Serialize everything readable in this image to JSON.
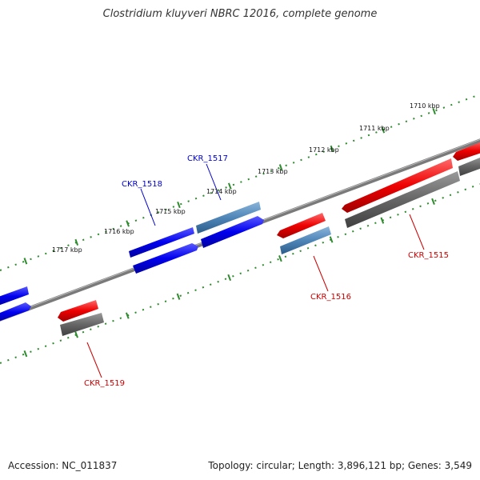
{
  "title": "Clostridium kluyveri NBRC 12016, complete genome",
  "footer": {
    "accession": "Accession: NC_011837",
    "summary": "Topology: circular; Length: 3,896,121 bp; Genes: 3,549"
  },
  "colors": {
    "backbone": "#7a7a7a",
    "tick": "#2e8b2e",
    "forward_gene": "#0000ee",
    "forward_gene_light": "#4f86b8",
    "reverse_gene": "#ee0000",
    "reverse_gene_dark": "#666666",
    "forward_label": "#0000cc",
    "reverse_label": "#cc0000",
    "tick_label": "#111111"
  },
  "ruler": {
    "unit": "kbp",
    "labels": [
      "1710 kbp",
      "1711 kbp",
      "1712 kbp",
      "1713 kbp",
      "1714 kbp",
      "1715 kbp",
      "1716 kbp",
      "1717 kbp"
    ]
  },
  "genes": [
    {
      "name": "CKR_1515",
      "strand": "reverse"
    },
    {
      "name": "CKR_1516",
      "strand": "reverse"
    },
    {
      "name": "CKR_1517",
      "strand": "forward"
    },
    {
      "name": "CKR_1518",
      "strand": "forward"
    },
    {
      "name": "CKR_1519",
      "strand": "reverse"
    }
  ]
}
